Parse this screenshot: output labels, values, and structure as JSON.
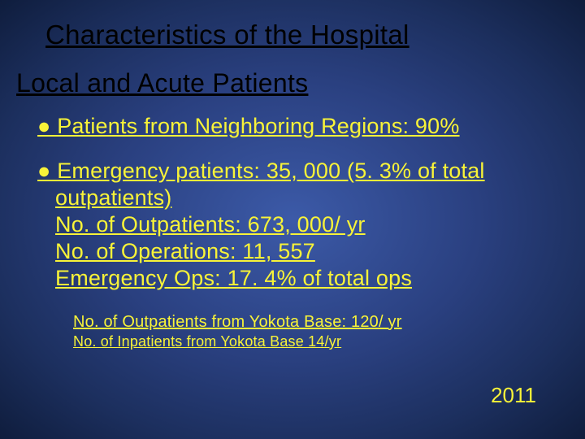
{
  "title": "Characteristics of the Hospital",
  "subtitle": "Local and Acute Patients",
  "bullet1": "● Patients from Neighboring Regions: 90%",
  "bullet2_line1": "● Emergency patients: 35, 000 (5. 3% of total",
  "bullet2_line2": "outpatients)",
  "bullet2_line3": "No. of Outpatients: 673, 000/ yr",
  "bullet2_line4": "No. of Operations: 11, 557",
  "bullet2_line5": "Emergency Ops: 17. 4% of total ops",
  "sub1": "No. of Outpatients  from Yokota Base: 120/ yr",
  "sub2": "No. of Inpatients from Yokota Base 14/yr",
  "year": "2011",
  "colors": {
    "title_color": "#000000",
    "text_color": "#f8f338",
    "bg_center": "#3c5aa8",
    "bg_outer": "#0f1d3d"
  },
  "fonts": {
    "title_size": 33,
    "subtitle_size": 32,
    "bullet_size": 27,
    "sub1_size": 20,
    "sub2_size": 18,
    "year_size": 26
  }
}
